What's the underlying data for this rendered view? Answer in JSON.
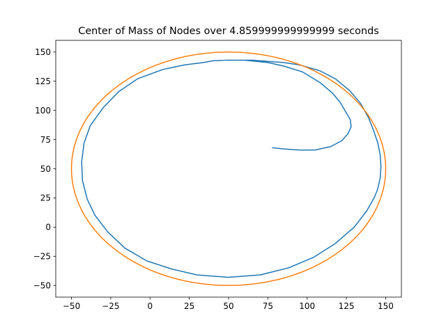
{
  "chart_data": {
    "type": "line",
    "title": "Center of Mass of Nodes over 4.859999999999999 seconds",
    "xlabel": "",
    "ylabel": "",
    "xlim": [
      -60,
      160
    ],
    "ylim": [
      -60,
      160
    ],
    "x_ticks": [
      -50,
      -25,
      0,
      25,
      50,
      75,
      100,
      125,
      150
    ],
    "y_ticks": [
      -50,
      -25,
      0,
      25,
      50,
      75,
      100,
      125,
      150
    ],
    "x_tick_labels": [
      "−50",
      "−25",
      "0",
      "25",
      "50",
      "75",
      "100",
      "125",
      "150"
    ],
    "y_tick_labels": [
      "−50",
      "−25",
      "0",
      "25",
      "50",
      "75",
      "100",
      "125",
      "150"
    ],
    "grid": false,
    "series": [
      {
        "color": "#1f77b4",
        "points": [
          [
            78,
            68
          ],
          [
            85,
            67
          ],
          [
            95,
            66
          ],
          [
            105,
            66
          ],
          [
            115,
            69
          ],
          [
            122,
            74
          ],
          [
            126,
            80
          ],
          [
            128,
            86
          ],
          [
            127.5,
            92
          ],
          [
            124,
            100
          ],
          [
            121,
            107
          ],
          [
            116,
            115
          ],
          [
            108,
            124
          ],
          [
            97,
            133
          ],
          [
            85,
            138
          ],
          [
            75,
            141
          ],
          [
            60,
            143
          ],
          [
            48,
            143
          ],
          [
            40,
            142.5
          ],
          [
            34,
            141
          ],
          [
            28,
            140
          ],
          [
            34,
            141
          ],
          [
            22,
            139
          ],
          [
            8,
            135
          ],
          [
            -8,
            127
          ],
          [
            -20,
            116
          ],
          [
            -30,
            102
          ],
          [
            -38,
            87
          ],
          [
            -42,
            72
          ],
          [
            -43.5,
            56
          ],
          [
            -43,
            40
          ],
          [
            -40,
            24
          ],
          [
            -35,
            10
          ],
          [
            -27,
            -4
          ],
          [
            -16,
            -18
          ],
          [
            -2,
            -29
          ],
          [
            14,
            -36
          ],
          [
            30,
            -41
          ],
          [
            50,
            -43
          ],
          [
            70,
            -41
          ],
          [
            88,
            -35
          ],
          [
            104,
            -26
          ],
          [
            118,
            -14
          ],
          [
            130,
            0
          ],
          [
            138,
            14
          ],
          [
            143,
            26
          ],
          [
            145,
            33
          ],
          [
            146.5,
            42
          ],
          [
            147,
            52
          ],
          [
            146.5,
            62
          ],
          [
            145,
            72
          ],
          [
            142.5,
            82
          ],
          [
            139,
            94
          ],
          [
            134,
            106
          ],
          [
            127,
            117
          ],
          [
            118,
            127
          ],
          [
            108,
            134
          ],
          [
            95,
            139
          ],
          [
            85,
            141
          ],
          [
            75,
            142
          ],
          [
            65,
            143
          ],
          [
            55,
            143
          ],
          [
            48,
            143
          ]
        ]
      },
      {
        "color": "#ff7f0e",
        "circle": {
          "cx": 50,
          "cy": 50,
          "r": 100
        }
      }
    ]
  }
}
